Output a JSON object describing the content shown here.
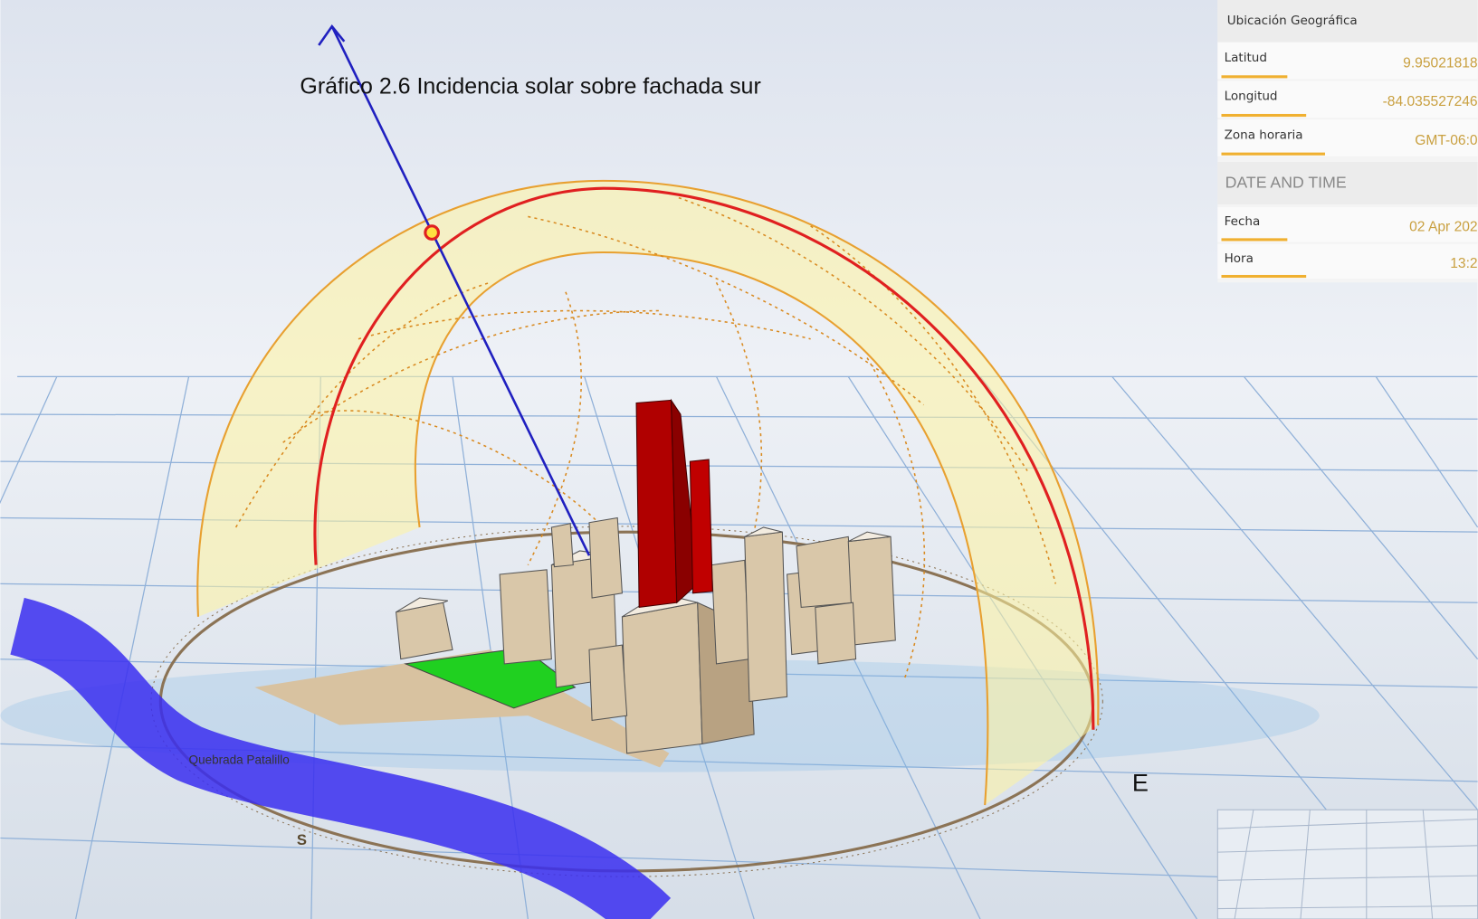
{
  "caption": "Gráfico 2.6 Incidencia solar sobre fachada sur",
  "panel": {
    "location": {
      "title": "Ubicación Geográfica",
      "rows": [
        {
          "label": "Latitud",
          "value": "9.95021818"
        },
        {
          "label": "Longitud",
          "value": "-84.035527246"
        },
        {
          "label": "Zona horaria",
          "value": "GMT-06:0"
        }
      ]
    },
    "datetime": {
      "title": "DATE AND TIME",
      "rows": [
        {
          "label": "Fecha",
          "value": "02 Apr 202"
        },
        {
          "label": "Hora",
          "value": "13:2"
        }
      ]
    }
  },
  "scene": {
    "river_label": "Quebrada Patalillo",
    "compass": {
      "south": "S",
      "east": "E"
    }
  }
}
